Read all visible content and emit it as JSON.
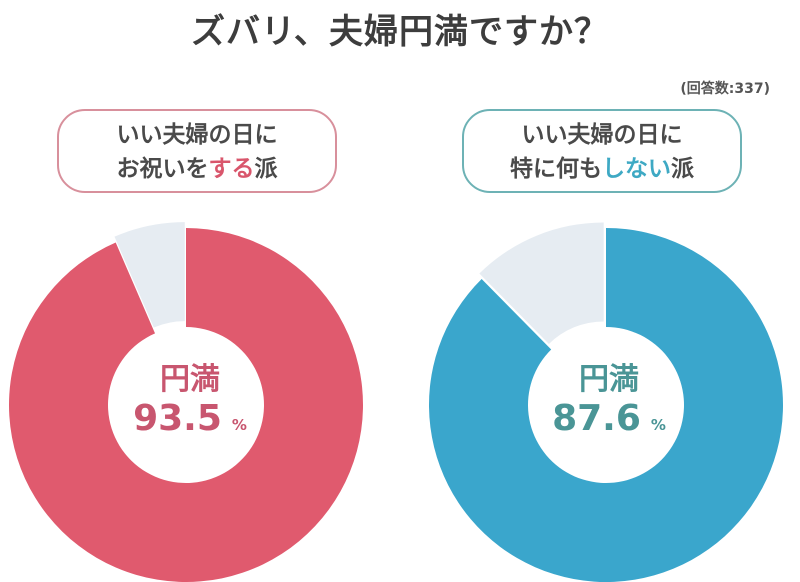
{
  "title": "ズバリ、夫婦円満ですか？",
  "note": "(回答数:337)",
  "colors": {
    "pink": "#e05a6e",
    "blue": "#3aa6cc",
    "remainder": "#e6ecf2",
    "pink_text": "#c8566f",
    "teal_text": "#4a9596"
  },
  "chart_data": [
    {
      "type": "pie",
      "variant": "donut",
      "group_label": {
        "line1": "いい夫婦の日に",
        "line2_pre": "お祝いを",
        "line2_hl": "する",
        "line2_post": "派"
      },
      "center_label": "円満",
      "value": 93.5,
      "unit": "%",
      "slices": [
        {
          "label": "円満",
          "value": 93.5,
          "color": "#e05a6e"
        },
        {
          "value": 6.5,
          "color": "#e6ecf2"
        }
      ]
    },
    {
      "type": "pie",
      "variant": "donut",
      "group_label": {
        "line1": "いい夫婦の日に",
        "line2_pre": "特に何も",
        "line2_hl": "しない",
        "line2_post": "派"
      },
      "center_label": "円満",
      "value": 87.6,
      "unit": "%",
      "slices": [
        {
          "label": "円満",
          "value": 87.6,
          "color": "#3aa6cc"
        },
        {
          "value": 12.4,
          "color": "#e6ecf2"
        }
      ]
    }
  ]
}
